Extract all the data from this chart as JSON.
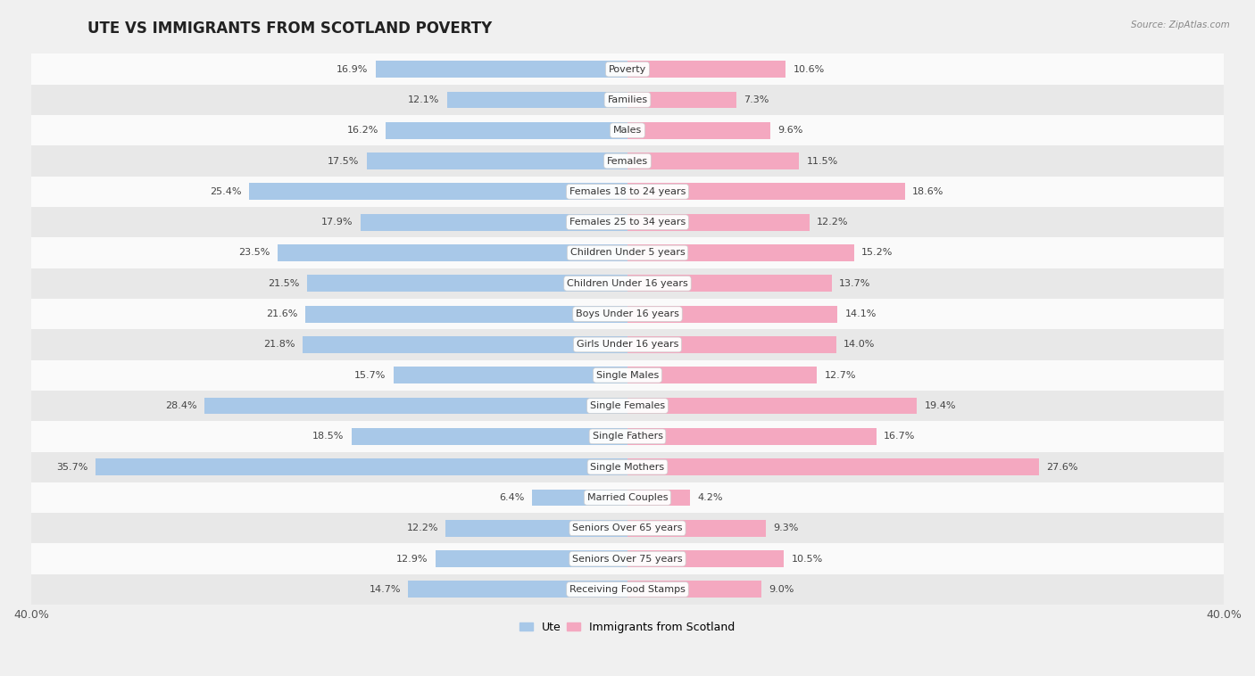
{
  "title": "UTE VS IMMIGRANTS FROM SCOTLAND POVERTY",
  "source": "Source: ZipAtlas.com",
  "categories": [
    "Poverty",
    "Families",
    "Males",
    "Females",
    "Females 18 to 24 years",
    "Females 25 to 34 years",
    "Children Under 5 years",
    "Children Under 16 years",
    "Boys Under 16 years",
    "Girls Under 16 years",
    "Single Males",
    "Single Females",
    "Single Fathers",
    "Single Mothers",
    "Married Couples",
    "Seniors Over 65 years",
    "Seniors Over 75 years",
    "Receiving Food Stamps"
  ],
  "ute_values": [
    16.9,
    12.1,
    16.2,
    17.5,
    25.4,
    17.9,
    23.5,
    21.5,
    21.6,
    21.8,
    15.7,
    28.4,
    18.5,
    35.7,
    6.4,
    12.2,
    12.9,
    14.7
  ],
  "scotland_values": [
    10.6,
    7.3,
    9.6,
    11.5,
    18.6,
    12.2,
    15.2,
    13.7,
    14.1,
    14.0,
    12.7,
    19.4,
    16.7,
    27.6,
    4.2,
    9.3,
    10.5,
    9.0
  ],
  "ute_color": "#a8c8e8",
  "scotland_color": "#f4a8c0",
  "background_color": "#f0f0f0",
  "row_color_light": "#fafafa",
  "row_color_dark": "#e8e8e8",
  "xlim": 40.0,
  "bar_height": 0.55,
  "label_fontsize": 8.0,
  "title_fontsize": 12,
  "legend_label_ute": "Ute",
  "legend_label_scotland": "Immigrants from Scotland"
}
